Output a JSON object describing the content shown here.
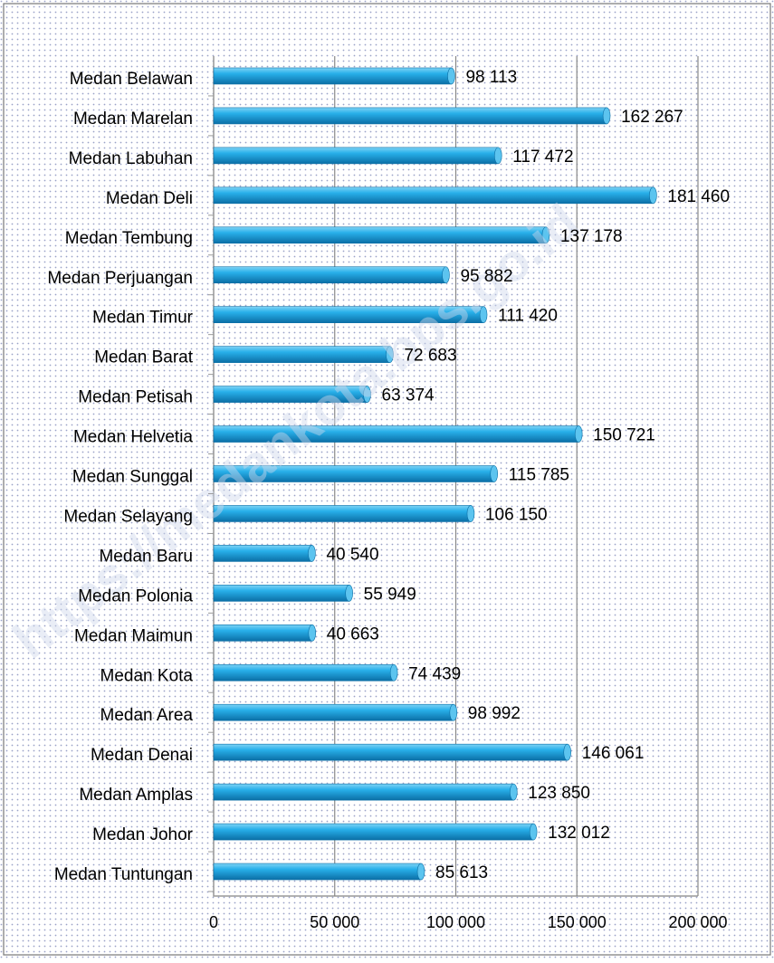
{
  "chart_data": {
    "type": "bar",
    "orientation": "horizontal",
    "categories": [
      "Medan Belawan",
      "Medan Marelan",
      "Medan Labuhan",
      "Medan Deli",
      "Medan Tembung",
      "Medan Perjuangan",
      "Medan Timur",
      "Medan Barat",
      "Medan Petisah",
      "Medan Helvetia",
      "Medan Sunggal",
      "Medan Selayang",
      "Medan Baru",
      "Medan Polonia",
      "Medan Maimun",
      "Medan Kota",
      "Medan Area",
      "Medan Denai",
      "Medan Amplas",
      "Medan Johor",
      "Medan Tuntungan"
    ],
    "values": [
      98113,
      162267,
      117472,
      181460,
      137178,
      95882,
      111420,
      72683,
      63374,
      150721,
      115785,
      106150,
      40540,
      55949,
      40663,
      74439,
      98992,
      146061,
      123850,
      132012,
      85613
    ],
    "value_labels": [
      "98 113",
      "162 267",
      "117 472",
      "181 460",
      "137 178",
      "95 882",
      "111 420",
      "72 683",
      "63 374",
      "150 721",
      "115 785",
      "106 150",
      "40 540",
      "55 949",
      "40 663",
      "74 439",
      "98 992",
      "146 061",
      "123 850",
      "132 012",
      "85 613"
    ],
    "color": "#1fa7e1",
    "xlim": [
      0,
      200000
    ],
    "xticks": [
      0,
      {
        "value": 50000,
        "label": "50 000"
      },
      {
        "value": 100000,
        "label": "100 000"
      },
      {
        "value": 150000,
        "label": "150 000"
      },
      {
        "value": 200000,
        "label": "200 000"
      }
    ],
    "grid": true,
    "watermark": "https://medankota.bps.go.id"
  }
}
